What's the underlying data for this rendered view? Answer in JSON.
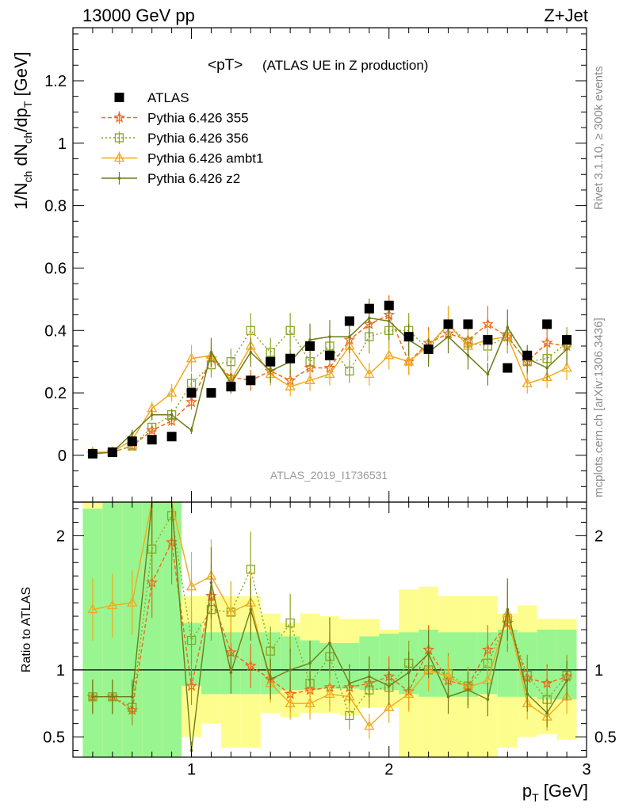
{
  "header": {
    "energy_label": "13000 GeV pp",
    "process_label": "Z+Jet"
  },
  "side_text": {
    "rivet": "Rivet 3.1.10, ≥ 300k events",
    "mcplots": "mcplots.cern.ch [arXiv:1306.3436]"
  },
  "analysis_id": "ATLAS_2019_I1736531",
  "chart_data": {
    "type": "scatter",
    "title": "<pT>",
    "subtitle": "(ATLAS UE in Z production)",
    "xlabel": "p_T [GeV]",
    "ylabel": "1/N_ch dN_ch/dp_T [GeV]",
    "ratio_ylabel": "Ratio to ATLAS",
    "xlim": [
      0.4,
      3.0
    ],
    "ylim": [
      -0.15,
      1.37
    ],
    "ratio_ylim": [
      0.35,
      2.25
    ],
    "x_ticks": [
      1,
      2,
      3
    ],
    "y_ticks": [
      0,
      0.2,
      0.4,
      0.6,
      0.8,
      1,
      1.2
    ],
    "ratio_ticks": [
      0.5,
      1,
      2
    ],
    "x": [
      0.5,
      0.6,
      0.7,
      0.8,
      0.9,
      1.0,
      1.1,
      1.2,
      1.3,
      1.4,
      1.5,
      1.6,
      1.7,
      1.8,
      1.9,
      2.0,
      2.1,
      2.2,
      2.3,
      2.4,
      2.5,
      2.6,
      2.7,
      2.8,
      2.9
    ],
    "data": {
      "name": "ATLAS",
      "values": [
        0.005,
        0.01,
        0.045,
        0.05,
        0.06,
        0.2,
        0.2,
        0.22,
        0.24,
        0.3,
        0.31,
        0.35,
        0.32,
        0.43,
        0.47,
        0.48,
        0.38,
        0.34,
        0.42,
        0.42,
        0.37,
        0.28,
        0.32,
        0.42,
        0.37
      ]
    },
    "series": [
      {
        "name": "Pythia 6.426 355",
        "color": "#ee6a1a",
        "marker": "star",
        "dash": "5,3",
        "values": [
          0.005,
          0.01,
          0.03,
          0.08,
          0.11,
          0.17,
          0.31,
          0.25,
          0.24,
          0.27,
          0.24,
          0.28,
          0.28,
          0.37,
          0.42,
          0.45,
          0.3,
          0.36,
          0.39,
          0.37,
          0.42,
          0.38,
          0.3,
          0.36,
          0.35
        ]
      },
      {
        "name": "Pythia 6.426 356",
        "color": "#8aa623",
        "marker": "open-square",
        "dash": "2,3",
        "values": [
          0.005,
          0.01,
          0.03,
          0.09,
          0.13,
          0.23,
          0.29,
          0.3,
          0.4,
          0.33,
          0.4,
          0.3,
          0.35,
          0.27,
          0.38,
          0.4,
          0.4,
          0.34,
          0.42,
          0.36,
          0.35,
          0.38,
          0.3,
          0.31,
          0.36
        ]
      },
      {
        "name": "Pythia 6.426 ambt1",
        "color": "#f2a91c",
        "marker": "open-triangle",
        "dash": "",
        "values": [
          0.01,
          0.01,
          0.05,
          0.15,
          0.2,
          0.31,
          0.32,
          0.24,
          0.35,
          0.26,
          0.22,
          0.24,
          0.26,
          0.35,
          0.26,
          0.32,
          0.3,
          0.35,
          0.42,
          0.35,
          0.37,
          0.38,
          0.23,
          0.25,
          0.28
        ]
      },
      {
        "name": "Pythia 6.426 z2",
        "color": "#6f7d18",
        "marker": "dot",
        "dash": "",
        "values": [
          0.005,
          0.01,
          0.07,
          0.13,
          0.13,
          0.08,
          0.33,
          0.23,
          0.33,
          0.27,
          0.3,
          0.37,
          0.38,
          0.38,
          0.44,
          0.43,
          0.37,
          0.33,
          0.38,
          0.32,
          0.26,
          0.41,
          0.31,
          0.28,
          0.34
        ]
      }
    ],
    "ratio_series": [
      [
        0.8,
        0.8,
        0.7,
        1.65,
        1.95,
        0.88,
        1.55,
        1.13,
        1.03,
        0.93,
        0.82,
        0.85,
        0.87,
        0.87,
        0.9,
        0.95,
        0.84,
        1.15,
        0.92,
        0.88,
        1.15,
        1.35,
        0.94,
        0.9,
        0.95
      ],
      [
        0.8,
        0.8,
        0.72,
        1.9,
        2.15,
        1.22,
        1.45,
        1.43,
        1.75,
        1.14,
        1.35,
        0.9,
        1.1,
        0.66,
        0.85,
        0.87,
        1.05,
        1.0,
        0.97,
        0.88,
        1.05,
        1.38,
        0.96,
        0.78,
        0.96
      ],
      [
        1.45,
        1.48,
        1.5,
        2.3,
        2.3,
        1.62,
        1.7,
        1.43,
        1.5,
        0.9,
        0.75,
        0.75,
        0.82,
        0.8,
        0.58,
        0.72,
        0.82,
        1.0,
        0.95,
        0.87,
        0.92,
        1.42,
        0.75,
        0.65,
        0.8
      ],
      [
        0.8,
        0.8,
        0.8,
        2.3,
        2.3,
        0.4,
        1.65,
        0.98,
        1.45,
        0.93,
        1.0,
        1.05,
        1.2,
        0.9,
        0.95,
        0.88,
        0.98,
        1.12,
        0.8,
        0.85,
        0.78,
        1.45,
        0.82,
        0.68,
        0.92
      ]
    ],
    "ratio_band_green": [
      [
        0.35,
        2.2
      ],
      [
        0.35,
        2.25
      ],
      [
        0.35,
        2.25
      ],
      [
        0.35,
        2.25
      ],
      [
        0.35,
        2.25
      ],
      [
        0.88,
        1.35
      ],
      [
        0.82,
        1.28
      ],
      [
        0.82,
        1.28
      ],
      [
        0.82,
        1.28
      ],
      [
        0.82,
        1.28
      ],
      [
        0.85,
        1.25
      ],
      [
        0.85,
        1.22
      ],
      [
        0.86,
        1.2
      ],
      [
        0.86,
        1.2
      ],
      [
        0.85,
        1.25
      ],
      [
        0.85,
        1.27
      ],
      [
        0.82,
        1.28
      ],
      [
        0.8,
        1.3
      ],
      [
        0.8,
        1.28
      ],
      [
        0.8,
        1.28
      ],
      [
        0.82,
        1.28
      ],
      [
        0.8,
        1.3
      ],
      [
        0.8,
        1.28
      ],
      [
        0.78,
        1.3
      ],
      [
        0.78,
        1.3
      ]
    ],
    "ratio_band_yellow": [
      [
        0.35,
        2.25
      ],
      [
        0.35,
        2.25
      ],
      [
        0.35,
        2.25
      ],
      [
        0.35,
        2.25
      ],
      [
        0.35,
        2.25
      ],
      [
        0.5,
        1.55
      ],
      [
        0.6,
        1.55
      ],
      [
        0.42,
        1.55
      ],
      [
        0.42,
        1.55
      ],
      [
        0.68,
        1.42
      ],
      [
        0.65,
        1.35
      ],
      [
        0.68,
        1.42
      ],
      [
        0.68,
        1.4
      ],
      [
        0.66,
        1.38
      ],
      [
        0.72,
        1.38
      ],
      [
        0.72,
        1.3
      ],
      [
        0.35,
        1.6
      ],
      [
        0.35,
        1.62
      ],
      [
        0.35,
        1.55
      ],
      [
        0.35,
        1.55
      ],
      [
        0.35,
        1.55
      ],
      [
        0.42,
        1.42
      ],
      [
        0.5,
        1.48
      ],
      [
        0.52,
        1.38
      ],
      [
        0.48,
        1.38
      ]
    ]
  }
}
